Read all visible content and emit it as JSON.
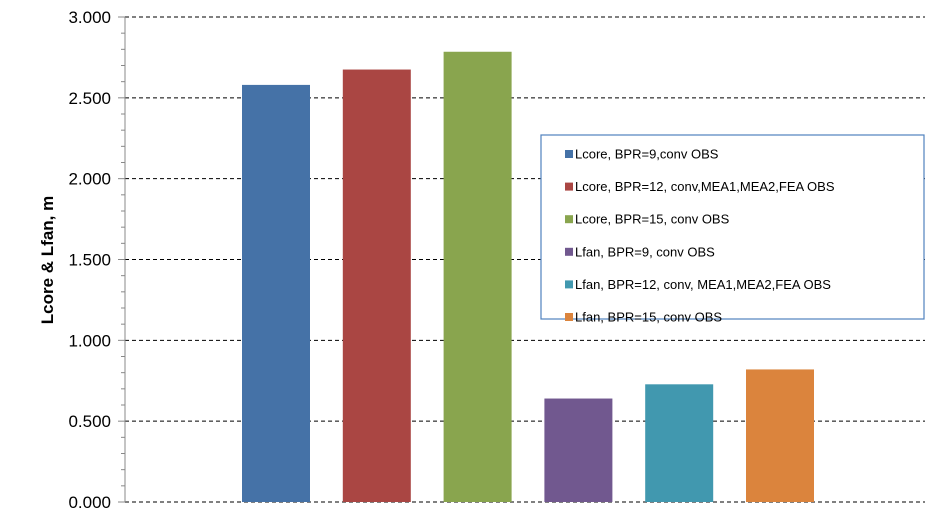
{
  "chart_data": {
    "type": "bar",
    "title": "",
    "xlabel": "",
    "ylabel": "Lcore & Lfan, m",
    "ylim": [
      0,
      3
    ],
    "yticks": [
      "0.000",
      "0.500",
      "1.000",
      "1.500",
      "2.000",
      "2.500",
      "3.000"
    ],
    "ytick_values": [
      0,
      0.5,
      1.0,
      1.5,
      2.0,
      2.5,
      3.0
    ],
    "grid": "dashed horizontal",
    "legend_position": "right",
    "series": [
      {
        "name": "Lcore, BPR=9,conv OBS",
        "value": 2.58,
        "color": "#4572A7"
      },
      {
        "name": "Lcore, BPR=12, conv,MEA1,MEA2,FEA OBS",
        "value": 2.675,
        "color": "#AA4643"
      },
      {
        "name": "Lcore, BPR=15, conv OBS",
        "value": 2.785,
        "color": "#89A54E"
      },
      {
        "name": "Lfan, BPR=9, conv OBS",
        "value": 0.64,
        "color": "#71588F"
      },
      {
        "name": "Lfan, BPR=12, conv, MEA1,MEA2,FEA OBS",
        "value": 0.728,
        "color": "#4198AF"
      },
      {
        "name": "Lfan, BPR=15, conv OBS",
        "value": 0.82,
        "color": "#DB843D"
      }
    ]
  }
}
